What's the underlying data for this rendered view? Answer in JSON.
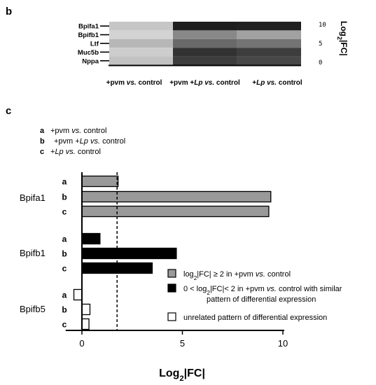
{
  "panels": {
    "b": "b",
    "c": "c"
  },
  "chart_data": [
    {
      "type": "heatmap",
      "rows": [
        "Bpifa1",
        "Bpifb1",
        "Ltf",
        "Muc5b",
        "Nppa"
      ],
      "columns": [
        "+pvm vs. control",
        "+pvm +Lp vs. control",
        "+Lp vs. control"
      ],
      "column_parts": [
        [
          {
            "t": "+pvm ",
            "i": false
          },
          {
            "t": "vs.",
            "i": true
          },
          {
            "t": " control",
            "i": false
          }
        ],
        [
          {
            "t": "+pvm +",
            "i": false
          },
          {
            "t": "Lp",
            "i": true
          },
          {
            "t": " ",
            "i": false
          },
          {
            "t": "vs.",
            "i": true
          },
          {
            "t": " control",
            "i": false
          }
        ],
        [
          {
            "t": "+",
            "i": false
          },
          {
            "t": "Lp",
            "i": true
          },
          {
            "t": " ",
            "i": false
          },
          {
            "t": "vs.",
            "i": true
          },
          {
            "t": " control",
            "i": false
          }
        ]
      ],
      "values": [
        [
          1.8,
          9.4,
          9.3
        ],
        [
          1.2,
          4.6,
          3.5
        ],
        [
          2.5,
          6.0,
          5.5
        ],
        [
          1.5,
          8.5,
          8.0
        ],
        [
          2.0,
          8.0,
          7.5
        ]
      ],
      "colorbar": {
        "min": 0,
        "max": 10,
        "ticks": [
          10,
          5,
          0
        ],
        "low_color": "#ffffff",
        "high_color": "#111111"
      },
      "colorbar_label": "Log2|FC|",
      "colorbar_label_parts": {
        "pre": "Log",
        "sub": "2",
        "post": "|FC|"
      }
    },
    {
      "type": "bar",
      "orientation": "horizontal",
      "condition_key": [
        {
          "key": "a",
          "parts": [
            {
              "t": "+pvm ",
              "i": false
            },
            {
              "t": "vs.",
              "i": true
            },
            {
              "t": " control",
              "i": false
            }
          ]
        },
        {
          "key": "b",
          "parts": [
            {
              "t": "+pvm +",
              "i": false
            },
            {
              "t": "Lp",
              "i": true
            },
            {
              "t": " ",
              "i": false
            },
            {
              "t": "vs.",
              "i": true
            },
            {
              "t": " control",
              "i": false
            }
          ]
        },
        {
          "key": "c",
          "parts": [
            {
              "t": "+",
              "i": false
            },
            {
              "t": "Lp",
              "i": true
            },
            {
              "t": " ",
              "i": false
            },
            {
              "t": "vs.",
              "i": true
            },
            {
              "t": " control",
              "i": false
            }
          ]
        }
      ],
      "groups": [
        {
          "gene": "Bpifa1",
          "bars": [
            {
              "label": "a",
              "value": 1.8,
              "category": "gray"
            },
            {
              "label": "b",
              "value": 9.4,
              "category": "gray"
            },
            {
              "label": "c",
              "value": 9.3,
              "category": "gray"
            }
          ]
        },
        {
          "gene": "Bpifb1",
          "bars": [
            {
              "label": "a",
              "value": 0.9,
              "category": "black"
            },
            {
              "label": "b",
              "value": 4.7,
              "category": "black"
            },
            {
              "label": "c",
              "value": 3.5,
              "category": "black"
            }
          ]
        },
        {
          "gene": "Bpifb5",
          "bars": [
            {
              "label": "a",
              "value": -0.4,
              "category": "white"
            },
            {
              "label": "b",
              "value": 0.4,
              "category": "white"
            },
            {
              "label": "c",
              "value": 0.35,
              "category": "white"
            }
          ]
        }
      ],
      "threshold": 1.75,
      "xlim": [
        -0.6,
        10
      ],
      "xticks": [
        0,
        5,
        10
      ],
      "xlabel": "Log2|FC|",
      "xlabel_parts": {
        "pre": "Log",
        "sub": "2",
        "post": "|FC|"
      },
      "colors": {
        "gray": "#999999",
        "black": "#000000",
        "white": "#ffffff"
      },
      "legend": [
        {
          "category": "gray",
          "parts": [
            {
              "t": "log",
              "i": false
            },
            {
              "t": "2",
              "i": false,
              "sub": true
            },
            {
              "t": "|FC| ≥ 2 in +pvm ",
              "i": false
            },
            {
              "t": "vs.",
              "i": true
            },
            {
              "t": " control",
              "i": false
            }
          ]
        },
        {
          "category": "black",
          "parts": [
            {
              "t": "0 < log",
              "i": false
            },
            {
              "t": "2",
              "i": false,
              "sub": true
            },
            {
              "t": "|FC|< 2 in +pvm ",
              "i": false
            },
            {
              "t": "vs.",
              "i": true
            },
            {
              "t": " control with similar",
              "i": false
            }
          ],
          "continuation": "pattern of differential expression"
        },
        {
          "category": "white",
          "parts": [
            {
              "t": "unrelated pattern of differential expression",
              "i": false
            }
          ]
        }
      ]
    }
  ]
}
